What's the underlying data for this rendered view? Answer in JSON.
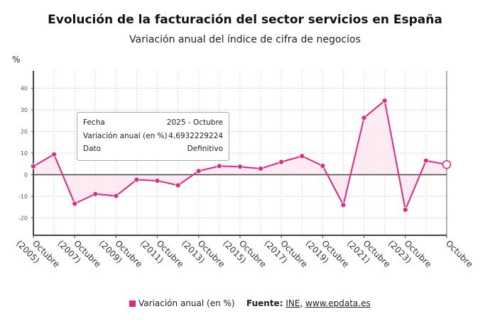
{
  "chart_data": {
    "type": "line",
    "title": "Evolución de la facturación del sector servicios en España",
    "subtitle": "Variación anual del índice de cifra de negocios",
    "ylabel": "%",
    "ylim": [
      -28,
      48
    ],
    "yticks": [
      -20,
      -10,
      0,
      10,
      20,
      30,
      40
    ],
    "grid": true,
    "x": [
      "2005",
      "2006",
      "2007",
      "2008",
      "2009",
      "2010",
      "2011",
      "2012",
      "2013",
      "2014",
      "2015",
      "2016",
      "2017",
      "2018",
      "2019",
      "2020",
      "2021",
      "2022",
      "2023",
      "2024",
      "2025"
    ],
    "xtick_labels": [
      {
        "line1": "Octubre",
        "line2": "(2005)"
      },
      {
        "line1": "Octubre",
        "line2": "(2007)"
      },
      {
        "line1": "Octubre",
        "line2": "(2009)"
      },
      {
        "line1": "Octubre",
        "line2": "(2011)"
      },
      {
        "line1": "Octubre",
        "line2": "(2013)"
      },
      {
        "line1": "Octubre",
        "line2": "(2015)"
      },
      {
        "line1": "Octubre",
        "line2": "(2017)"
      },
      {
        "line1": "Octubre",
        "line2": "(2019)"
      },
      {
        "line1": "Octubre",
        "line2": "(2021)"
      },
      {
        "line1": "Octubre",
        "line2": "(2023)"
      },
      {
        "line1": "Octubre",
        "line2": ""
      }
    ],
    "series": [
      {
        "name": "Variación anual (en %)",
        "color": "#e6267f",
        "values": [
          3.9,
          9.4,
          -13.4,
          -8.9,
          -9.8,
          -2.3,
          -2.8,
          -4.9,
          1.7,
          4.0,
          3.7,
          2.8,
          5.9,
          8.6,
          4.1,
          -14.0,
          26.3,
          34.2,
          -16.2,
          6.5,
          4.6932229224
        ]
      }
    ],
    "legend_position": "bottom"
  },
  "tooltip": {
    "rows": [
      {
        "label": "Fecha",
        "value": "2025 - Octubre"
      },
      {
        "label": "Variación anual (en %)",
        "value": "4,6932229224"
      },
      {
        "label": "Dato",
        "value": "Definitivo"
      }
    ]
  },
  "source": {
    "label": "Fuente:",
    "link1": "INE",
    "separator": ",",
    "link2": "www.epdata.es"
  },
  "colors": {
    "series": "#e6267f",
    "fill": "#fbe6f0"
  }
}
